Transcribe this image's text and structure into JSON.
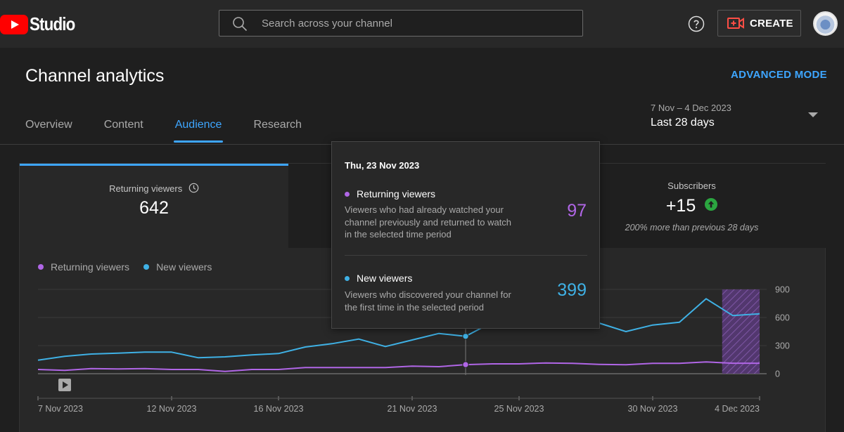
{
  "app": {
    "logo_text": "Studio"
  },
  "search": {
    "placeholder": "Search across your channel"
  },
  "header": {
    "create_label": "CREATE",
    "title": "Channel analytics",
    "advanced_mode": "ADVANCED MODE"
  },
  "tabs": [
    {
      "label": "Overview",
      "active": false
    },
    {
      "label": "Content",
      "active": false
    },
    {
      "label": "Audience",
      "active": true
    },
    {
      "label": "Research",
      "active": false
    }
  ],
  "date_picker": {
    "range": "7 Nov – 4 Dec 2023",
    "label": "Last 28 days"
  },
  "metrics": [
    {
      "label": "Returning viewers",
      "value": "642"
    },
    {
      "label": "Subscribers",
      "value": "+15",
      "comparison": "200% more than previous 28 days"
    }
  ],
  "legend": [
    {
      "label": "Returning viewers",
      "color": "#b066e6"
    },
    {
      "label": "New viewers",
      "color": "#3fb1e5"
    }
  ],
  "tooltip": {
    "date": "Thu, 23 Nov 2023",
    "items": [
      {
        "title": "Returning viewers",
        "description": "Viewers who had already watched your channel previously and returned to watch in the selected time period",
        "value": "97",
        "color": "#b066e6"
      },
      {
        "title": "New viewers",
        "description": "Viewers who discovered your channel for the first time in the selected period",
        "value": "399",
        "color": "#3fb1e5"
      }
    ]
  },
  "chart_data": {
    "type": "line",
    "x": [
      "7 Nov 2023",
      "8 Nov 2023",
      "9 Nov 2023",
      "10 Nov 2023",
      "11 Nov 2023",
      "12 Nov 2023",
      "13 Nov 2023",
      "14 Nov 2023",
      "15 Nov 2023",
      "16 Nov 2023",
      "17 Nov 2023",
      "18 Nov 2023",
      "19 Nov 2023",
      "20 Nov 2023",
      "21 Nov 2023",
      "22 Nov 2023",
      "23 Nov 2023",
      "24 Nov 2023",
      "25 Nov 2023",
      "26 Nov 2023",
      "27 Nov 2023",
      "28 Nov 2023",
      "29 Nov 2023",
      "30 Nov 2023",
      "1 Dec 2023",
      "2 Dec 2023",
      "3 Dec 2023",
      "4 Dec 2023"
    ],
    "x_tick_labels": [
      "7 Nov 2023",
      "12 Nov 2023",
      "16 Nov 2023",
      "21 Nov 2023",
      "25 Nov 2023",
      "30 Nov 2023",
      "4 Dec 2023"
    ],
    "y_tick_labels": [
      "900",
      "600",
      "300",
      "0"
    ],
    "ylim": [
      0,
      900
    ],
    "series": [
      {
        "name": "Returning viewers",
        "color": "#b066e6",
        "values": [
          45,
          35,
          55,
          50,
          55,
          45,
          45,
          25,
          45,
          45,
          65,
          65,
          65,
          65,
          80,
          75,
          97,
          105,
          105,
          115,
          110,
          100,
          95,
          110,
          110,
          125,
          112,
          112
        ]
      },
      {
        "name": "New viewers",
        "color": "#3fb1e5",
        "values": [
          145,
          185,
          210,
          220,
          230,
          230,
          170,
          180,
          200,
          215,
          285,
          320,
          370,
          290,
          360,
          430,
          399,
          550,
          580,
          600,
          580,
          540,
          450,
          520,
          550,
          800,
          620,
          640
        ]
      }
    ],
    "highlight": {
      "date": "23 Nov 2023",
      "returning": 97,
      "new": 399
    },
    "partial_period": "4 Dec 2023",
    "grid": true
  }
}
